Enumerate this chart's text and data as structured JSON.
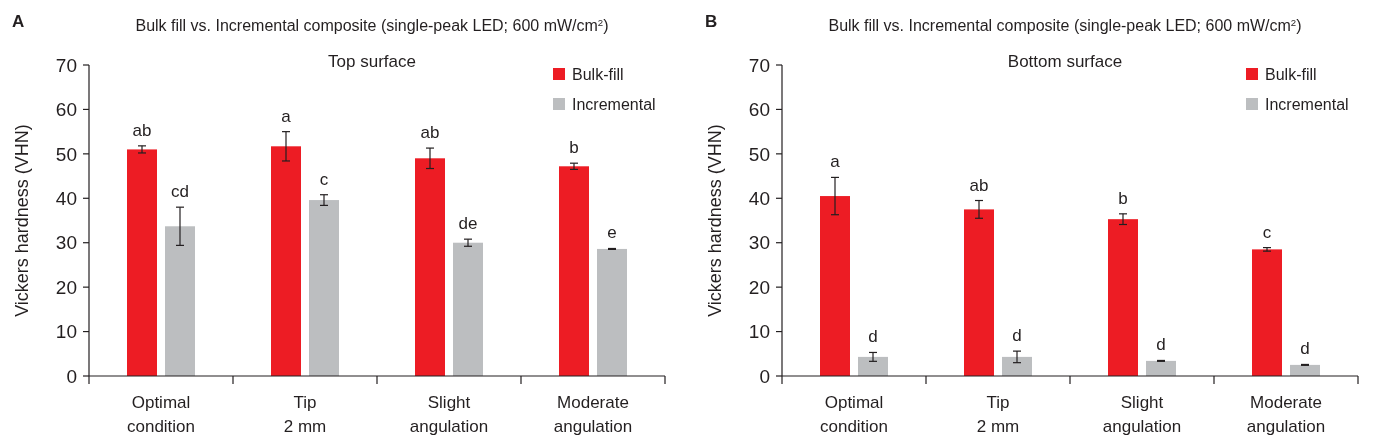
{
  "chart_data": [
    {
      "type": "bar",
      "title": "Bulk fill vs. Incremental composite (single-peak LED; 600 mW/cm$^{2}$)",
      "subtitle": "Top surface",
      "annotations": [
        "A"
      ],
      "ylabel": "Vickers hardness (VHN)",
      "categories": [
        "Optimal\ncondition",
        "Tip\n2 mm",
        "Slight\nangulation",
        "Moderate\nangulation"
      ],
      "series": [
        {
          "name": "Bulk-fill",
          "color": "#ed1c24",
          "values": [
            51,
            51.7,
            49,
            47.2
          ],
          "errors": [
            0.8,
            3.3,
            2.3,
            0.7
          ],
          "value_labels": [
            "ab",
            "a",
            "ab",
            "b"
          ]
        },
        {
          "name": "Incremental",
          "color": "#bcbec0",
          "values": [
            33.7,
            39.6,
            30,
            28.6
          ],
          "errors": [
            4.3,
            1.2,
            0.8,
            0.1
          ],
          "value_labels": [
            "cd",
            "c",
            "de",
            "e"
          ]
        }
      ],
      "ylim": [
        0,
        70
      ],
      "yticks": [
        0,
        10,
        20,
        30,
        40,
        50,
        60,
        70
      ],
      "grid": false,
      "legend": "top right"
    },
    {
      "type": "bar",
      "title": "Bulk fill vs. Incremental composite (single-peak LED; 600 mW/cm$^{2}$)",
      "subtitle": "Bottom surface",
      "annotations": [
        "B"
      ],
      "ylabel": "Vickers hardness (VHN)",
      "categories": [
        "Optimal\ncondition",
        "Tip\n2 mm",
        "Slight\nangulation",
        "Moderate\nangulation"
      ],
      "series": [
        {
          "name": "Bulk-fill",
          "color": "#ed1c24",
          "values": [
            40.5,
            37.5,
            35.3,
            28.5
          ],
          "errors": [
            4.2,
            2,
            1.2,
            0.4
          ],
          "value_labels": [
            "a",
            "ab",
            "b",
            "c"
          ]
        },
        {
          "name": "Incremental",
          "color": "#bcbec0",
          "values": [
            4.3,
            4.3,
            3.4,
            2.5
          ],
          "errors": [
            1,
            1.3,
            0.1,
            0.1
          ],
          "value_labels": [
            "d",
            "d",
            "d",
            "d"
          ]
        }
      ],
      "ylim": [
        0,
        70
      ],
      "yticks": [
        0,
        10,
        20,
        30,
        40,
        50,
        60,
        70
      ],
      "grid": false,
      "legend": "top right"
    }
  ]
}
